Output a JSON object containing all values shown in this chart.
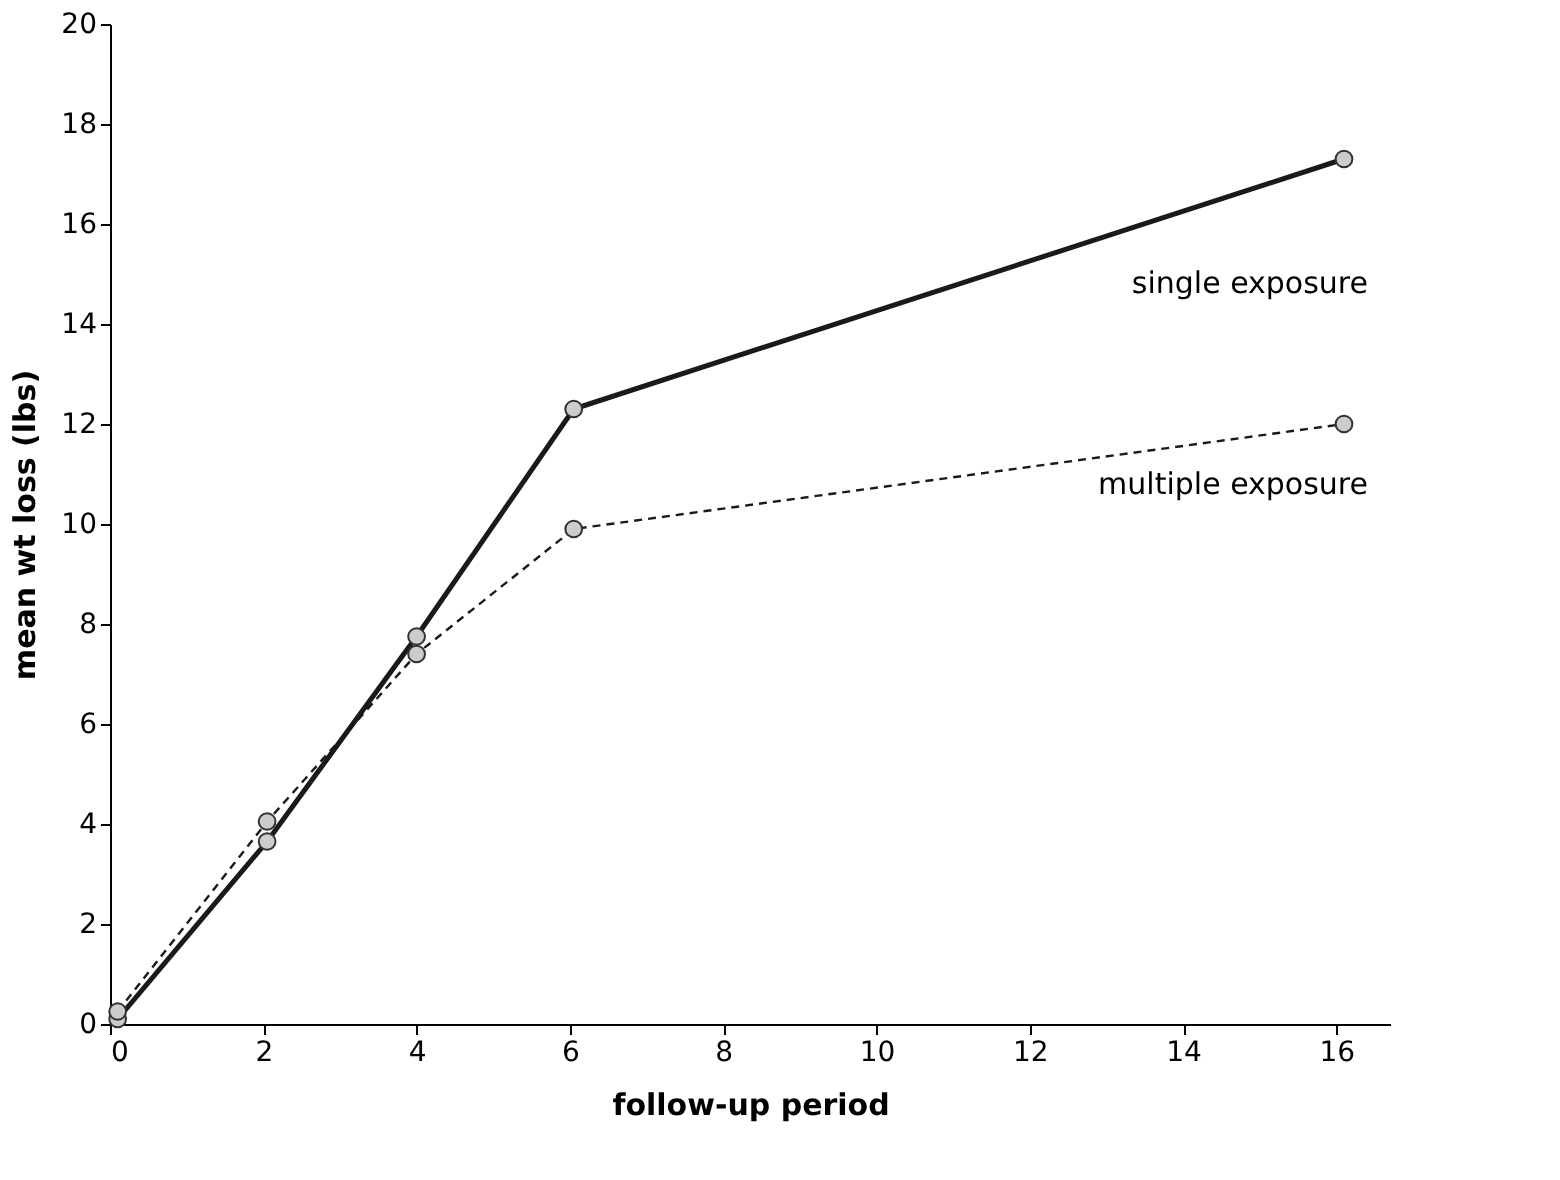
{
  "chart_data": {
    "type": "line",
    "xlabel": "follow-up period",
    "ylabel": "mean wt loss (lbs)",
    "xlim": [
      0,
      16.7
    ],
    "xticks": [
      0,
      2,
      4,
      6,
      8,
      10,
      12,
      14,
      16
    ],
    "ylim": [
      0,
      20
    ],
    "yticks": [
      0,
      2,
      4,
      6,
      8,
      10,
      12,
      14,
      16,
      18,
      20
    ],
    "grid": false,
    "legend": false,
    "marker": "circle",
    "series": [
      {
        "name": "single exposure",
        "color": "#1a1a1a",
        "line_style": "solid",
        "x": [
          0.1,
          2.05,
          4.0,
          6.05,
          16.1
        ],
        "values": [
          0.1,
          3.65,
          7.75,
          12.3,
          17.3
        ]
      },
      {
        "name": "multiple exposure",
        "color": "#1a1a1a",
        "line_style": "dashed",
        "x": [
          0.1,
          2.05,
          4.0,
          6.05,
          16.1
        ],
        "values": [
          0.25,
          4.05,
          7.4,
          9.9,
          12.0
        ]
      }
    ]
  }
}
